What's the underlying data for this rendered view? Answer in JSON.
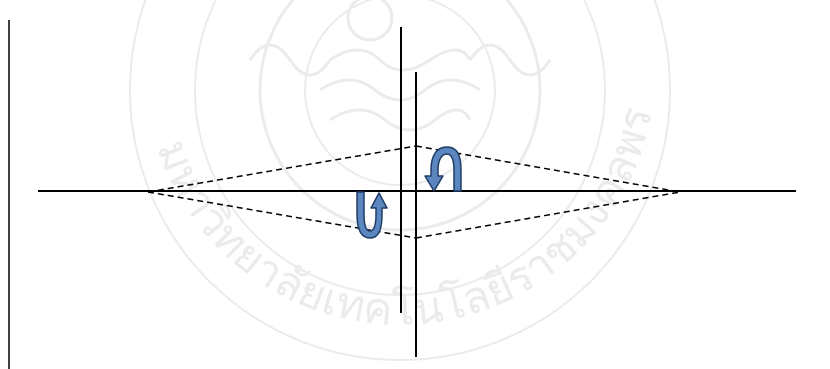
{
  "figure": {
    "type": "optics-diagram",
    "watermark": {
      "kind": "university-seal",
      "text": "มหาวิทยาลัยเทคโนโลยีราชมงคลพระนคร",
      "color": "#8a8a8a"
    },
    "colors": {
      "line": "#000000",
      "dashed": "#000000",
      "arrow_fill": "#5b86c0",
      "arrow_stroke": "#1f3d66",
      "border": "#000000"
    },
    "rotation_arrows": [
      {
        "name": "rotation-arrow-upper",
        "direction": "counterclockwise"
      },
      {
        "name": "rotation-arrow-lower",
        "direction": "clockwise"
      }
    ]
  }
}
